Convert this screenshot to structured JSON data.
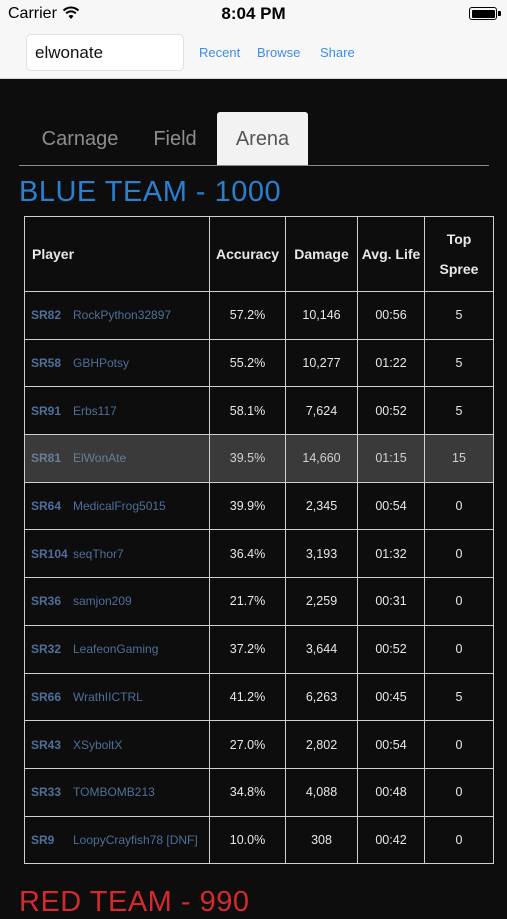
{
  "status_bar": {
    "carrier": "Carrier",
    "time": "8:04 PM"
  },
  "search": {
    "value": "elwonate"
  },
  "header_links": [
    {
      "label": "Recent"
    },
    {
      "label": "Browse"
    },
    {
      "label": "Share"
    }
  ],
  "tabs": [
    {
      "label": "Carnage",
      "active": false
    },
    {
      "label": "Field",
      "active": false
    },
    {
      "label": "Arena",
      "active": true
    }
  ],
  "blue_team": {
    "title": "BLUE TEAM - 1000",
    "color": "#2a7fcf",
    "columns": {
      "player": "Player",
      "accuracy": "Accuracy",
      "damage": "Damage",
      "avg_life": "Avg. Life",
      "top_spree_line1": "Top",
      "top_spree_line2": "Spree"
    },
    "rows": [
      {
        "rank": "SR82",
        "gamertag": "RockPython32897",
        "accuracy": "57.2%",
        "damage": "10,146",
        "avg_life": "00:56",
        "top_spree": "5"
      },
      {
        "rank": "SR58",
        "gamertag": "GBHPotsy",
        "accuracy": "55.2%",
        "damage": "10,277",
        "avg_life": "01:22",
        "top_spree": "5"
      },
      {
        "rank": "SR91",
        "gamertag": "Erbs117",
        "accuracy": "58.1%",
        "damage": "7,624",
        "avg_life": "00:52",
        "top_spree": "5"
      },
      {
        "rank": "SR81",
        "gamertag": "ElWonAte",
        "accuracy": "39.5%",
        "damage": "14,660",
        "avg_life": "01:15",
        "top_spree": "15",
        "highlighted": true
      },
      {
        "rank": "SR64",
        "gamertag": "MedicalFrog5015",
        "accuracy": "39.9%",
        "damage": "2,345",
        "avg_life": "00:54",
        "top_spree": "0"
      },
      {
        "rank": "SR104",
        "gamertag": "seqThor7",
        "accuracy": "36.4%",
        "damage": "3,193",
        "avg_life": "01:32",
        "top_spree": "0"
      },
      {
        "rank": "SR36",
        "gamertag": "samjon209",
        "accuracy": "21.7%",
        "damage": "2,259",
        "avg_life": "00:31",
        "top_spree": "0"
      },
      {
        "rank": "SR32",
        "gamertag": "LeafeonGaming",
        "accuracy": "37.2%",
        "damage": "3,644",
        "avg_life": "00:52",
        "top_spree": "0"
      },
      {
        "rank": "SR66",
        "gamertag": "WrathIICTRL",
        "accuracy": "41.2%",
        "damage": "6,263",
        "avg_life": "00:45",
        "top_spree": "5"
      },
      {
        "rank": "SR43",
        "gamertag": "XSyboltX",
        "accuracy": "27.0%",
        "damage": "2,802",
        "avg_life": "00:54",
        "top_spree": "0"
      },
      {
        "rank": "SR33",
        "gamertag": "TOMBOMB213",
        "accuracy": "34.8%",
        "damage": "4,088",
        "avg_life": "00:48",
        "top_spree": "0"
      },
      {
        "rank": "SR9",
        "gamertag": "LoopyCrayfish78 [DNF]",
        "accuracy": "10.0%",
        "damage": "308",
        "avg_life": "00:42",
        "top_spree": "0"
      }
    ]
  },
  "red_team": {
    "title": "RED TEAM - 990",
    "color": "#d42a2a"
  }
}
